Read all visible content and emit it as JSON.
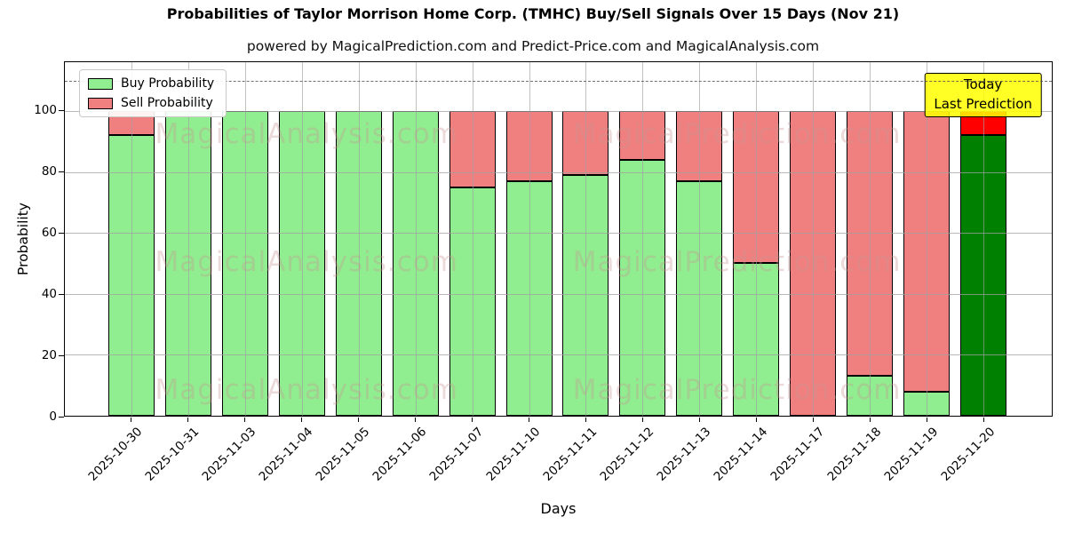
{
  "title": "Probabilities of Taylor Morrison Home Corp. (TMHC) Buy/Sell Signals Over 15 Days (Nov 21)",
  "subtitle": "powered by MagicalPrediction.com and Predict-Price.com and MagicalAnalysis.com",
  "legend": {
    "items": [
      {
        "label": "Buy Probability",
        "color": "#90ee90"
      },
      {
        "label": "Sell Probability",
        "color": "#f08080"
      }
    ]
  },
  "axes": {
    "x_label": "Days",
    "y_label": "Probability",
    "y_ticks": [
      0,
      20,
      40,
      60,
      80,
      100
    ],
    "y_max": 116,
    "dashed_line_y": 110,
    "grid": true
  },
  "annotation": {
    "line1": "Today",
    "line2": "Last Prediction",
    "bg_color": "#ffff00"
  },
  "watermarks": [
    "MagicalAnalysis.com",
    "MagicalPrediction.com"
  ],
  "colors": {
    "buy": "#90ee90",
    "sell": "#f08080",
    "today_buy": "#008000",
    "today_sell": "#ff0000",
    "bar_edge": "#000000",
    "grid": "#a0a0a0"
  },
  "chart_data": {
    "type": "bar",
    "stacked": true,
    "title": "Probabilities of Taylor Morrison Home Corp. (TMHC) Buy/Sell Signals Over 15 Days (Nov 21)",
    "xlabel": "Days",
    "ylabel": "Probability",
    "ylim": [
      0,
      116
    ],
    "legend_position": "upper left",
    "categories": [
      "2025-10-30",
      "2025-10-31",
      "2025-11-03",
      "2025-11-04",
      "2025-11-05",
      "2025-11-06",
      "2025-11-07",
      "2025-11-10",
      "2025-11-11",
      "2025-11-12",
      "2025-11-13",
      "2025-11-14",
      "2025-11-17",
      "2025-11-18",
      "2025-11-19",
      "2025-11-20"
    ],
    "series": [
      {
        "name": "Buy Probability",
        "values": [
          92,
          100,
          100,
          100,
          100,
          100,
          75,
          77,
          79,
          84,
          77,
          50,
          0,
          13,
          8,
          92
        ]
      },
      {
        "name": "Sell Probability",
        "values": [
          8,
          0,
          0,
          0,
          0,
          0,
          25,
          23,
          21,
          16,
          23,
          50,
          100,
          87,
          92,
          8
        ]
      }
    ],
    "today_index": 15,
    "today_annotation": "Today\nLast Prediction",
    "dashed_threshold": 110
  }
}
